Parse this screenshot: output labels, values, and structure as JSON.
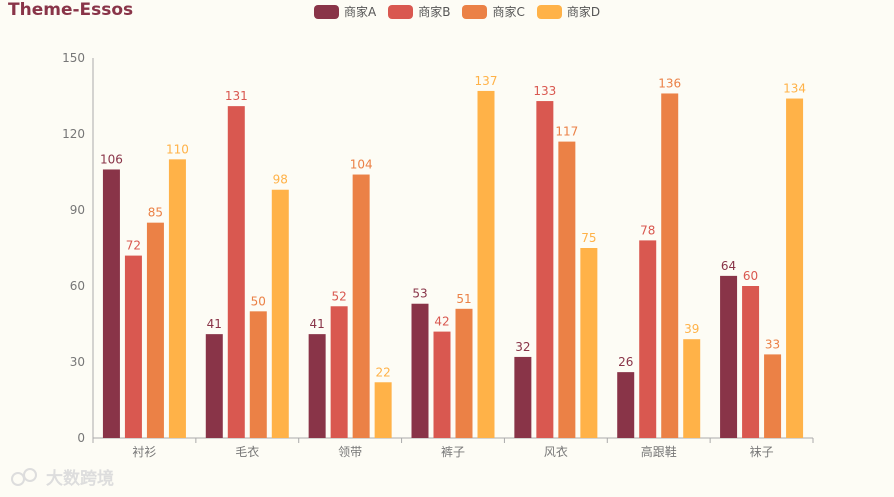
{
  "title": "Theme-Essos",
  "watermark": "大数跨境",
  "chart_data": {
    "type": "bar",
    "title": "Theme-Essos",
    "categories": [
      "衬衫",
      "毛衣",
      "领带",
      "裤子",
      "风衣",
      "高跟鞋",
      "袜子"
    ],
    "ylim": [
      0,
      150
    ],
    "yticks": [
      0,
      30,
      60,
      90,
      120,
      150
    ],
    "legend_position": "top-center",
    "series": [
      {
        "name": "商家A",
        "color": "#893448",
        "values": [
          106,
          41,
          41,
          53,
          32,
          26,
          64
        ]
      },
      {
        "name": "商家B",
        "color": "#d95850",
        "values": [
          72,
          131,
          52,
          42,
          133,
          78,
          60
        ]
      },
      {
        "name": "商家C",
        "color": "#eb8146",
        "values": [
          85,
          50,
          104,
          51,
          117,
          136,
          33
        ]
      },
      {
        "name": "商家D",
        "color": "#ffb248",
        "values": [
          110,
          98,
          22,
          137,
          75,
          39,
          134
        ]
      }
    ]
  }
}
